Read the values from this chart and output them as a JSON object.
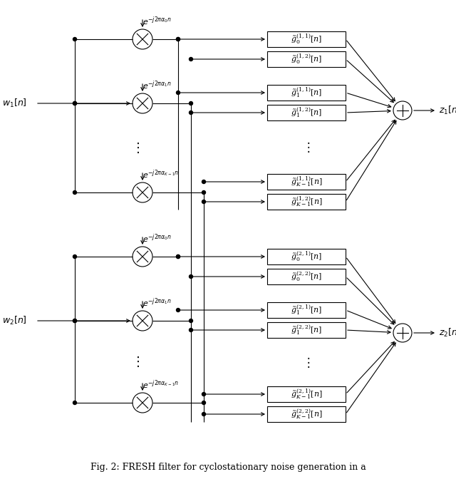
{
  "fig_width": 6.4,
  "fig_height": 6.79,
  "dpi": 100,
  "caption": "Fig. 2: FRESH filter for cyclostationary noise generation in a",
  "background": "#ffffff"
}
